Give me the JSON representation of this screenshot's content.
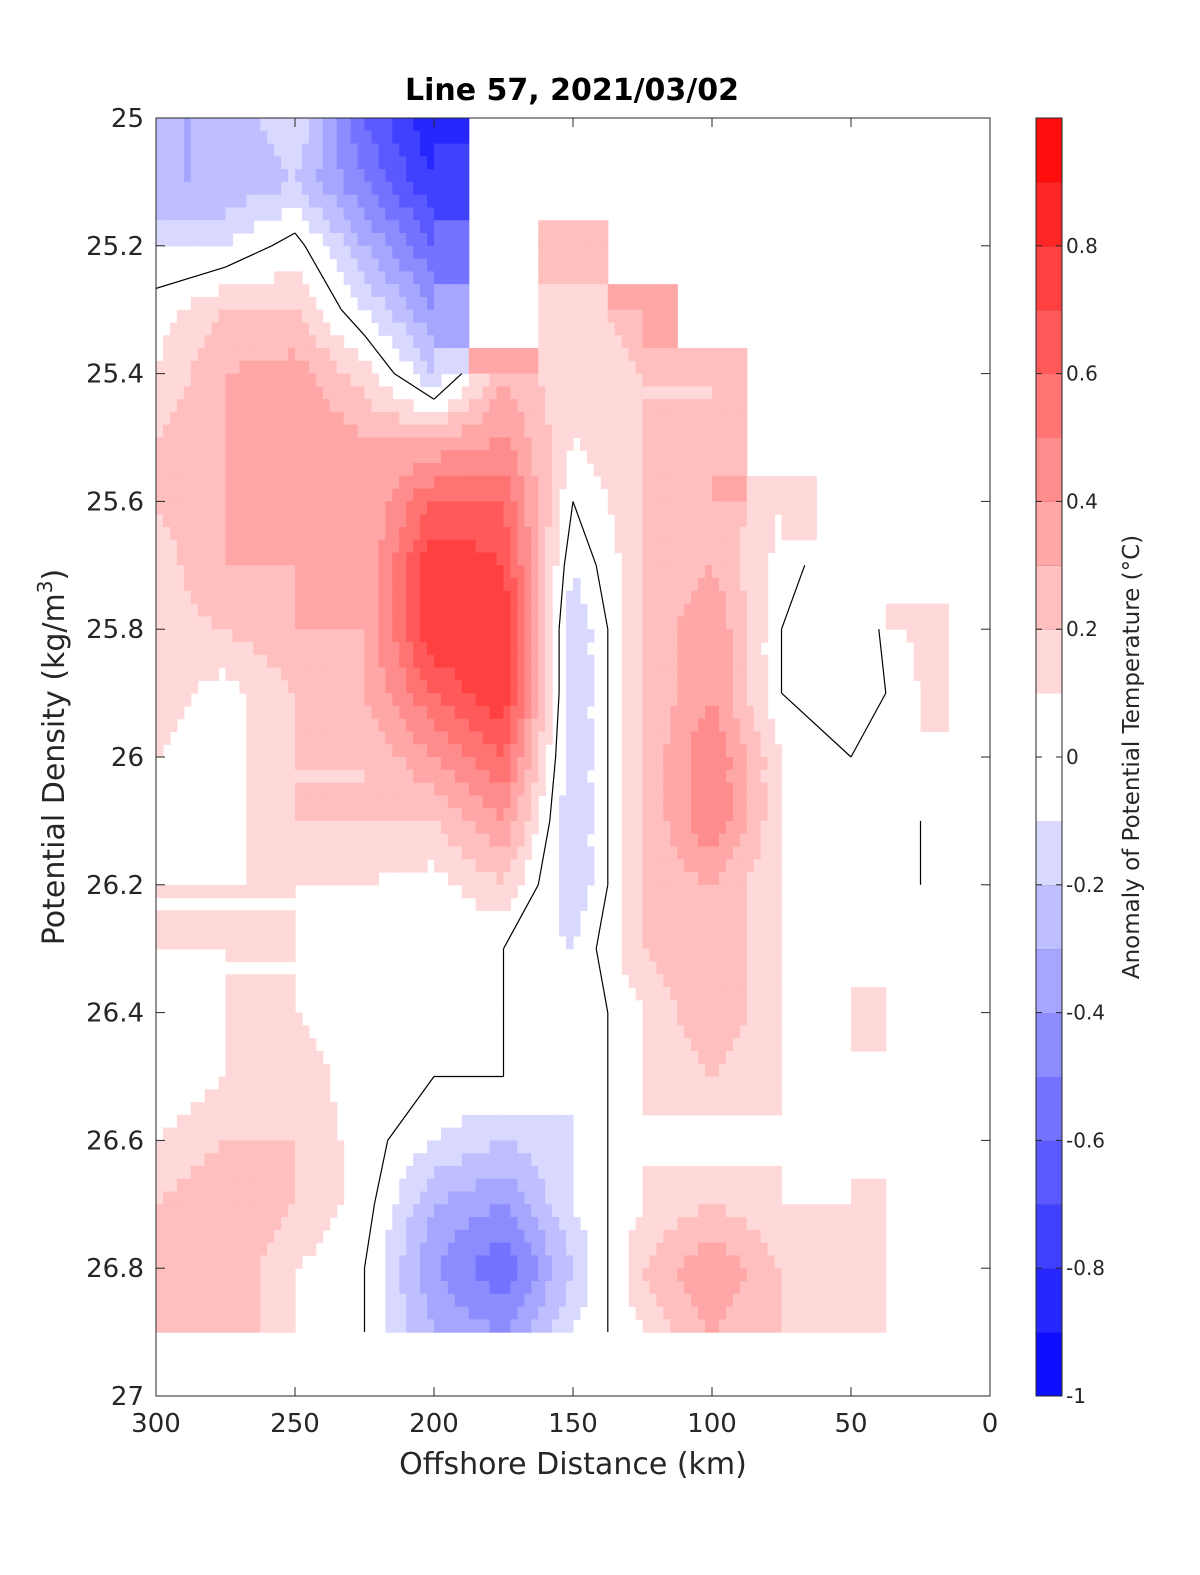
{
  "chart_data": {
    "type": "heatmap",
    "title": "Line 57, 2021/03/02",
    "xlabel": "Offshore Distance (km)",
    "ylabel": "Potential Density (kg/m",
    "ylabel_sup": "3",
    "ylabel_close": ")",
    "xlim": [
      0,
      300
    ],
    "x_reversed": true,
    "ylim": [
      25,
      27
    ],
    "y_reversed": true,
    "x_ticks": [
      300,
      250,
      200,
      150,
      100,
      50,
      0
    ],
    "y_ticks": [
      "25",
      "25.2",
      "25.4",
      "25.6",
      "25.8",
      "26",
      "26.2",
      "26.4",
      "26.6",
      "26.8",
      "27"
    ],
    "y_tick_values": [
      25,
      25.2,
      25.4,
      25.6,
      25.8,
      26,
      26.2,
      26.4,
      26.6,
      26.8,
      27
    ],
    "grid": false,
    "colorbar": {
      "label": "Anomaly of Potential Temperature (°C)",
      "range": [
        -1,
        1
      ],
      "levels": [
        -1,
        -0.9,
        -0.8,
        -0.7,
        -0.6,
        -0.5,
        -0.4,
        -0.3,
        -0.2,
        -0.1,
        0.1,
        0.2,
        0.3,
        0.4,
        0.5,
        0.6,
        0.7,
        0.8,
        0.9,
        1
      ],
      "ticks": [
        "-1",
        "-0.8",
        "-0.6",
        "-0.4",
        "-0.2",
        "0",
        "0.2",
        "0.4",
        "0.6",
        "0.8"
      ],
      "tick_values": [
        -1,
        -0.8,
        -0.6,
        -0.4,
        -0.2,
        0,
        0.2,
        0.4,
        0.6,
        0.8
      ]
    },
    "contour_lines": [
      0
    ],
    "anomaly_grid": {
      "x": [
        300,
        275,
        250,
        225,
        200,
        175,
        150,
        125,
        100,
        75,
        50,
        25,
        5
      ],
      "density": [
        25.0,
        25.1,
        25.2,
        25.3,
        25.4,
        25.5,
        25.6,
        25.7,
        25.8,
        25.9,
        26.0,
        26.1,
        26.2,
        26.3,
        26.4,
        26.5,
        26.6,
        26.7,
        26.8,
        26.9
      ],
      "values": [
        [
          -0.3,
          -0.3,
          -0.1,
          -0.6,
          -0.9,
          null,
          null,
          null,
          null,
          null,
          null,
          null,
          null
        ],
        [
          -0.3,
          -0.3,
          -0.2,
          -0.5,
          -0.8,
          null,
          null,
          null,
          null,
          null,
          null,
          null,
          null
        ],
        [
          -0.1,
          -0.1,
          0.05,
          -0.3,
          -0.6,
          null,
          0.2,
          null,
          null,
          null,
          null,
          null,
          null
        ],
        [
          0.05,
          0.2,
          0.2,
          -0.1,
          -0.4,
          null,
          0.1,
          0.3,
          null,
          null,
          null,
          null,
          null
        ],
        [
          0.1,
          0.3,
          0.35,
          0.15,
          -0.2,
          0.3,
          0.1,
          0.2,
          0.2,
          null,
          null,
          null,
          null
        ],
        [
          0.2,
          0.3,
          0.4,
          0.3,
          0.3,
          0.4,
          0.1,
          0.2,
          0.2,
          null,
          null,
          null,
          null
        ],
        [
          0.2,
          0.3,
          0.35,
          0.3,
          0.6,
          0.6,
          0.0,
          0.2,
          0.3,
          0.1,
          null,
          null,
          null
        ],
        [
          0.15,
          0.3,
          0.3,
          0.3,
          0.8,
          0.7,
          -0.1,
          0.2,
          0.3,
          0.05,
          -0.1,
          null,
          null
        ],
        [
          0.15,
          0.2,
          0.3,
          0.3,
          0.8,
          0.8,
          -0.2,
          0.2,
          0.4,
          0.0,
          -0.1,
          0.15,
          null
        ],
        [
          0.15,
          0.05,
          0.2,
          0.3,
          0.6,
          0.8,
          -0.2,
          0.2,
          0.4,
          0.0,
          -0.1,
          0.1,
          null
        ],
        [
          0.1,
          0.05,
          0.2,
          0.2,
          0.4,
          0.6,
          -0.2,
          0.2,
          0.5,
          0.1,
          0.0,
          0.05,
          null
        ],
        [
          0.1,
          0.05,
          0.2,
          0.2,
          0.2,
          0.4,
          -0.2,
          0.2,
          0.5,
          0.1,
          0.0,
          0.0,
          -0.1
        ],
        [
          0.1,
          0.1,
          0.1,
          0.1,
          0.05,
          0.2,
          -0.2,
          0.2,
          0.3,
          0.1,
          0.0,
          0.0,
          -0.1
        ],
        [
          0.1,
          0.1,
          0.1,
          0.05,
          0.0,
          0.0,
          -0.1,
          0.2,
          0.3,
          0.1,
          0.05,
          0.0,
          null
        ],
        [
          0.0,
          0.1,
          0.1,
          0.0,
          0.0,
          0.0,
          -0.1,
          0.1,
          0.3,
          0.1,
          0.1,
          null,
          null
        ],
        [
          0.0,
          0.1,
          0.2,
          0.0,
          0.0,
          0.0,
          -0.1,
          0.1,
          0.2,
          0.1,
          0.05,
          null,
          null
        ],
        [
          0.1,
          0.2,
          0.2,
          0.05,
          -0.1,
          -0.2,
          -0.1,
          0.1,
          0.05,
          0.1,
          0.0,
          null,
          null
        ],
        [
          0.2,
          0.3,
          0.2,
          0.05,
          -0.3,
          -0.4,
          -0.1,
          0.1,
          0.2,
          0.1,
          0.1,
          null,
          null
        ],
        [
          0.2,
          0.3,
          0.1,
          0.0,
          -0.4,
          -0.6,
          -0.2,
          0.2,
          0.4,
          0.2,
          0.1,
          null,
          null
        ],
        [
          0.2,
          0.3,
          0.1,
          0.0,
          -0.3,
          -0.4,
          -0.1,
          0.1,
          0.3,
          0.2,
          0.1,
          null,
          null
        ]
      ]
    }
  },
  "colors": {
    "zero_band": "#ffffff",
    "axis": "#262626",
    "contour": "#000000"
  }
}
